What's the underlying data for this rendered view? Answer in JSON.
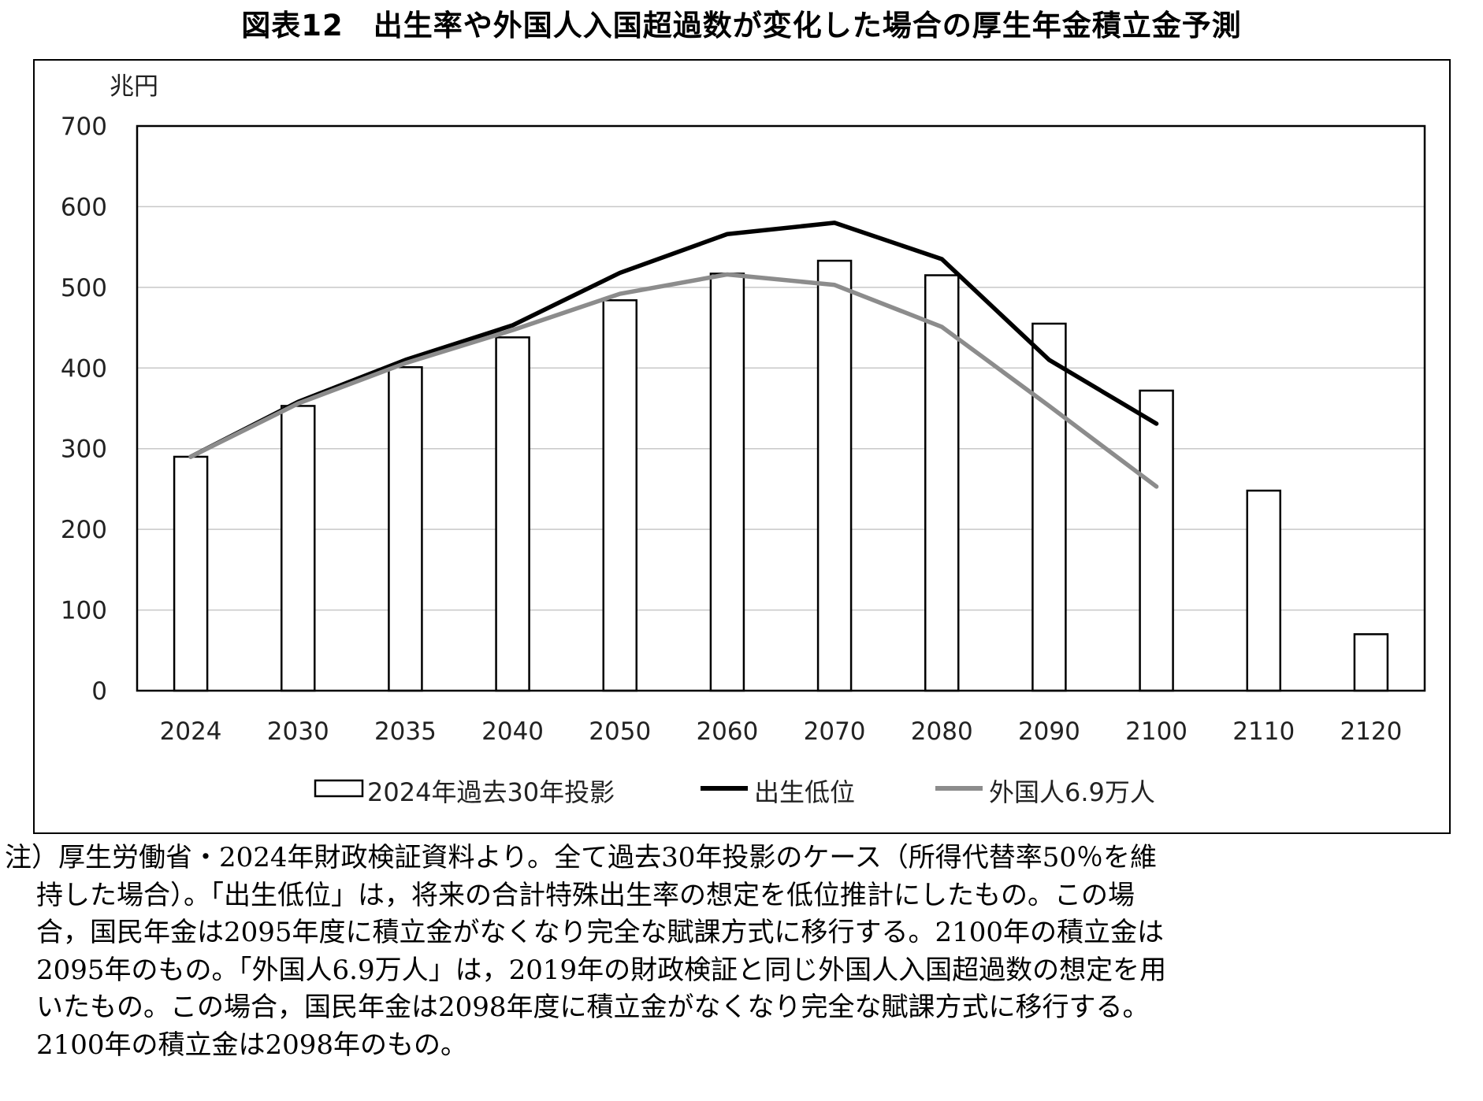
{
  "chart_data": {
    "type": "bar",
    "title": "図表12　出生率や外国人入国超過数が変化した場合の厚生年金積立金予測",
    "ylabel": "兆円",
    "ylim": [
      0,
      700
    ],
    "yticks": [
      "0",
      "100",
      "200",
      "300",
      "400",
      "500",
      "600",
      "700"
    ],
    "categories": [
      "2024",
      "2030",
      "2035",
      "2040",
      "2050",
      "2060",
      "2070",
      "2080",
      "2090",
      "2100",
      "2110",
      "2120"
    ],
    "series": [
      {
        "name": "2024年過去30年投影",
        "kind": "bar",
        "color": "#ffffff",
        "values": [
          290,
          353,
          401,
          438,
          484,
          517,
          533,
          515,
          455,
          372,
          248,
          70
        ]
      },
      {
        "name": "出生低位",
        "kind": "line",
        "color": "#000000",
        "values": [
          290,
          358,
          410,
          453,
          518,
          566,
          580,
          535,
          410,
          331,
          null,
          null
        ]
      },
      {
        "name": "外国人6.9万人",
        "kind": "line",
        "color": "#8c8c8c",
        "values": [
          290,
          356,
          406,
          447,
          492,
          516,
          503,
          451,
          353,
          253,
          null,
          null
        ]
      }
    ],
    "grid": true,
    "legend": "bottom"
  },
  "note": {
    "first_line": "注）厚生労働省・2024年財政検証資料より。全て過去30年投影のケース（所得代替率50％を維",
    "lines": [
      "持した場合）。「出生低位」は，将来の合計特殊出生率の想定を低位推計にしたもの。この場",
      "合，国民年金は2095年度に積立金がなくなり完全な賦課方式に移行する。2100年の積立金は",
      "2095年のもの。「外国人6.9万人」は，2019年の財政検証と同じ外国人入国超過数の想定を用",
      "いたもの。この場合，国民年金は2098年度に積立金がなくなり完全な賦課方式に移行する。",
      "2100年の積立金は2098年のもの。"
    ]
  }
}
